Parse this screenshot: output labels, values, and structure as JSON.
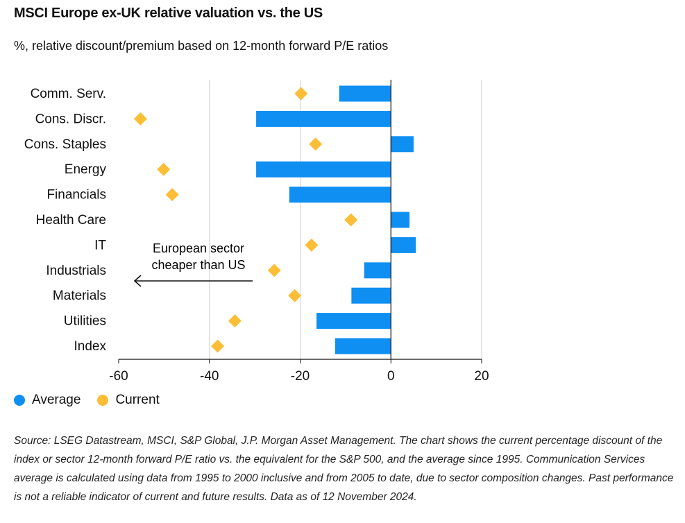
{
  "title": "MSCI Europe ex-UK relative valuation vs. the US",
  "subtitle": "%, relative discount/premium based on 12-month forward P/E ratios",
  "annotation": {
    "line1": "European sector",
    "line2": "cheaper than US"
  },
  "legend": [
    {
      "label": "Average",
      "color": "#0f8ff2"
    },
    {
      "label": "Current",
      "color": "#fbbe36"
    }
  ],
  "source": "Source: LSEG Datastream, MSCI, S&P Global, J.P. Morgan Asset Management. The chart shows the current percentage discount of the index or sector 12-month forward P/E ratio vs. the equivalent for the S&P 500, and the average since 1995. Communication Services average is calculated using data from 1995 to 2000 inclusive and from 2005 to date, due to sector composition changes. Past performance is not a reliable indicator of current and future results. Data as of 12 November 2024.",
  "chart_data": {
    "type": "bar",
    "orientation": "horizontal",
    "categories": [
      "Comm. Serv.",
      "Cons. Discr.",
      "Cons. Staples",
      "Energy",
      "Financials",
      "Health Care",
      "IT",
      "Industrials",
      "Materials",
      "Utilities",
      "Index"
    ],
    "series": [
      {
        "name": "Average",
        "mark": "bar",
        "color": "#0f8ff2",
        "values": [
          -11.4,
          -29.7,
          5.0,
          -29.7,
          -22.4,
          4.1,
          5.5,
          -5.9,
          -8.7,
          -16.4,
          -12.3
        ]
      },
      {
        "name": "Current",
        "mark": "diamond",
        "color": "#fbbe36",
        "values": [
          -19.8,
          -55.2,
          -16.6,
          -50.1,
          -48.2,
          -8.8,
          -17.5,
          -25.7,
          -21.2,
          -34.4,
          -38.2
        ]
      }
    ],
    "xlim": [
      -60,
      20
    ],
    "xticks": [
      "-60",
      "-40",
      "-20",
      "0",
      "20"
    ],
    "grid": true,
    "legend_position": "bottom-left"
  }
}
